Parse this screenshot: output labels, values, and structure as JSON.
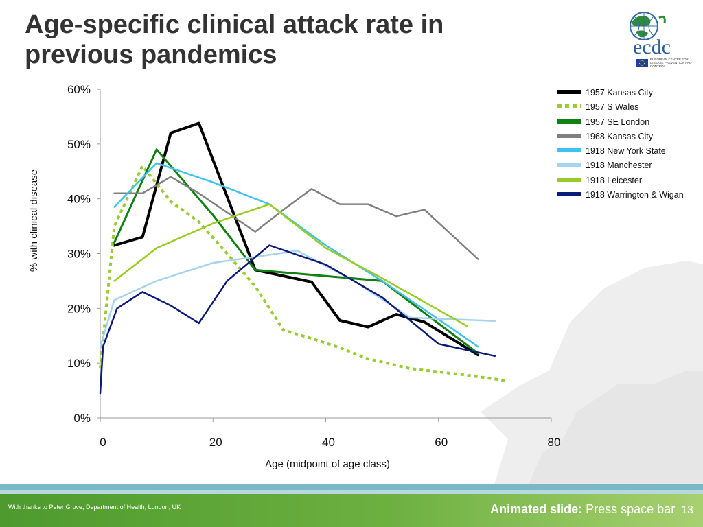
{
  "slide": {
    "title": "Age-specific clinical attack rate in previous pandemics",
    "logo_text": "ecdc",
    "logo_subtext": "EUROPEAN CENTRE FOR DISEASE PREVENTION AND CONTROL",
    "footer_credit": "With thanks to Peter Grove, Department of Health, London, UK",
    "footer_bold": "Animated slide:",
    "footer_instruction": "Press space bar",
    "page_number": "13"
  },
  "colors": {
    "footer_green": "#6cb040",
    "title_color": "#333333"
  },
  "chart_data": {
    "type": "line",
    "title": "",
    "xlabel": "Age (midpoint of age class)",
    "ylabel": "% with clinical disease",
    "xlim": [
      0,
      80
    ],
    "ylim": [
      0,
      60
    ],
    "x_ticks": [
      0,
      20,
      40,
      60,
      80
    ],
    "x_tick_labels": [
      "0",
      "20",
      "40",
      "60",
      "80"
    ],
    "y_ticks": [
      0,
      10,
      20,
      30,
      40,
      50,
      60
    ],
    "y_tick_labels": [
      "0%",
      "10%",
      "20%",
      "30%",
      "40%",
      "50%",
      "60%"
    ],
    "grid": false,
    "legend_position": "top-right",
    "series": [
      {
        "name": "1957 Kansas City",
        "color": "#000000",
        "style": "solid",
        "width": 4,
        "x": [
          2.5,
          7.5,
          12.5,
          17.5,
          27.5,
          37.5,
          42.5,
          47.5,
          52.5,
          57.5,
          67
        ],
        "y": [
          31.5,
          33,
          52,
          53.8,
          27,
          24.8,
          17.8,
          16.6,
          18.9,
          17.5,
          11.5
        ]
      },
      {
        "name": "1957 S Wales",
        "color": "#99cc33",
        "style": "dotted",
        "width": 4,
        "x": [
          0,
          2.5,
          7.5,
          12.5,
          17.5,
          22.5,
          27.5,
          32.5,
          37.5,
          42.5,
          47.5,
          55,
          65,
          72
        ],
        "y": [
          9,
          35,
          46,
          39.5,
          35.8,
          30,
          24,
          16,
          14.5,
          12.8,
          10.8,
          9,
          7.8,
          6.8
        ]
      },
      {
        "name": "1957 SE London",
        "color": "#108010",
        "style": "solid",
        "width": 3,
        "x": [
          2.5,
          10,
          20,
          27.5,
          50,
          67
        ],
        "y": [
          32,
          49,
          37,
          27,
          25,
          11.8
        ]
      },
      {
        "name": "1968 Kansas City",
        "color": "#808080",
        "style": "solid",
        "width": 2.5,
        "x": [
          2.5,
          7.5,
          12.5,
          17.5,
          22.5,
          27.5,
          32.5,
          37.5,
          42.5,
          47.5,
          52.5,
          57.5,
          67
        ],
        "y": [
          41,
          41,
          44,
          41,
          37.5,
          34,
          38,
          41.8,
          39,
          39,
          36.8,
          38,
          29
        ]
      },
      {
        "name": "1918 New York State",
        "color": "#3fc3ee",
        "style": "solid",
        "width": 2.5,
        "x": [
          2.5,
          10,
          20,
          30,
          40,
          50,
          60,
          67
        ],
        "y": [
          38.5,
          46.5,
          43,
          39,
          31.5,
          25,
          18,
          13
        ]
      },
      {
        "name": "1918 Manchester",
        "color": "#a6d4ee",
        "style": "solid",
        "width": 2.5,
        "x": [
          0,
          2.5,
          10,
          20,
          35,
          45,
          55,
          70
        ],
        "y": [
          13,
          21.5,
          25,
          28.3,
          30.5,
          25,
          18.3,
          17.7
        ]
      },
      {
        "name": "1918 Leicester",
        "color": "#99cc22",
        "style": "solid",
        "width": 2.5,
        "x": [
          2.5,
          10,
          20,
          30,
          40,
          50,
          65
        ],
        "y": [
          25,
          31,
          35.5,
          39,
          31,
          25.5,
          16.8
        ]
      },
      {
        "name": "1918 Warrington & Wigan",
        "color": "#0c1a78",
        "style": "solid",
        "width": 2.5,
        "x": [
          0,
          0.5,
          3,
          7.5,
          12.5,
          17.5,
          22.5,
          30,
          40,
          50,
          60,
          70
        ],
        "y": [
          4.5,
          13,
          20,
          23,
          20.5,
          17.3,
          25,
          31.5,
          28,
          22,
          13.5,
          11.3
        ]
      }
    ]
  }
}
